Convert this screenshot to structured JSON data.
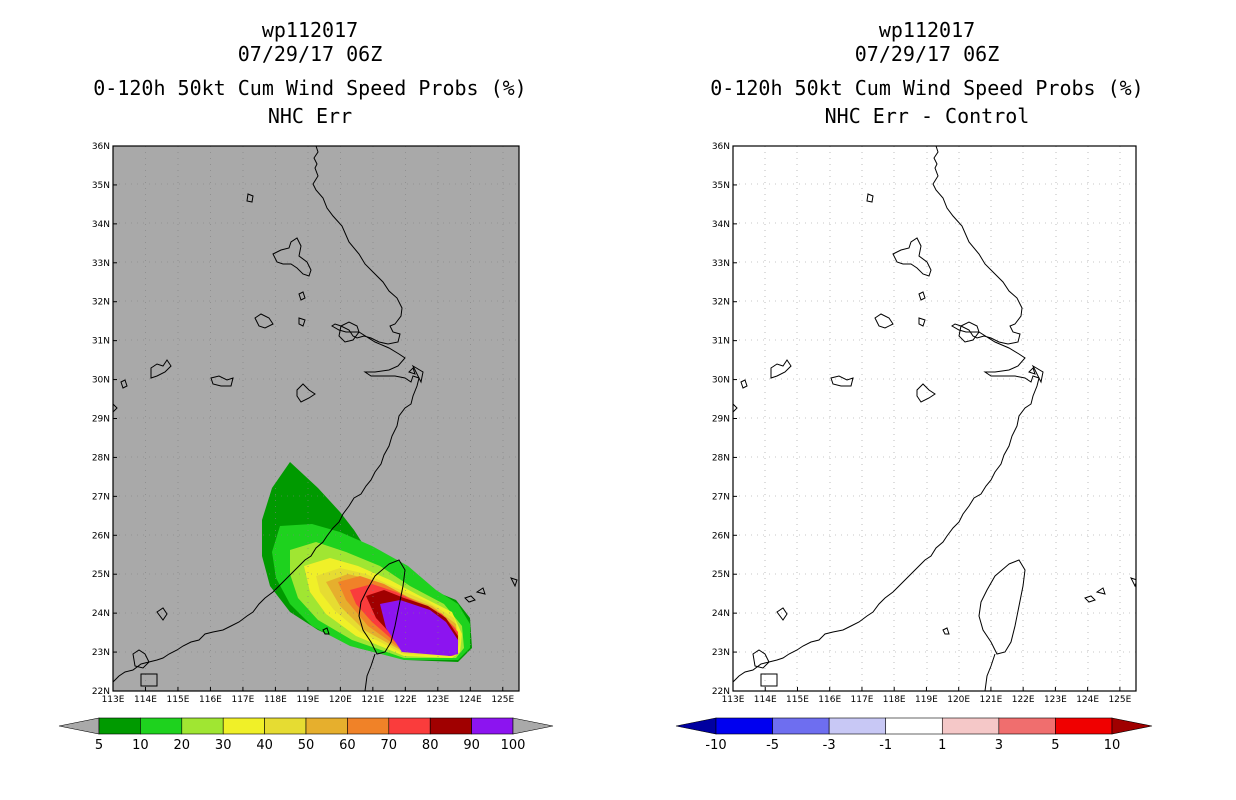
{
  "chart_data": [
    {
      "type": "contour_map",
      "title_lines": [
        "wp112017",
        "07/29/17 06Z",
        "0-120h 50kt Cum Wind Speed Probs (%)",
        "NHC Err"
      ],
      "xlabel": "",
      "ylabel": "",
      "x_ticks": [
        "113E",
        "114E",
        "115E",
        "116E",
        "117E",
        "118E",
        "119E",
        "120E",
        "121E",
        "122E",
        "123E",
        "124E",
        "125E"
      ],
      "y_ticks": [
        "22N",
        "23N",
        "24N",
        "25N",
        "26N",
        "27N",
        "28N",
        "29N",
        "30N",
        "31N",
        "32N",
        "33N",
        "34N",
        "35N",
        "36N"
      ],
      "xlim": [
        113,
        125.5
      ],
      "ylim": [
        22,
        36
      ],
      "background_color": "#a9a9a9",
      "grid": true,
      "colorbar": {
        "levels": [
          "5",
          "10",
          "20",
          "30",
          "40",
          "50",
          "60",
          "70",
          "80",
          "90",
          "100"
        ],
        "colors": [
          "#009a00",
          "#1ed21e",
          "#a0e632",
          "#f0f028",
          "#e6dc32",
          "#e6af2d",
          "#f08228",
          "#fa3c3c",
          "#a00000",
          "#8c14f0"
        ]
      }
    },
    {
      "type": "contour_map",
      "title_lines": [
        "wp112017",
        "07/29/17 06Z",
        "0-120h 50kt Cum Wind Speed Probs (%)",
        "NHC Err - Control"
      ],
      "xlabel": "",
      "ylabel": "",
      "x_ticks": [
        "113E",
        "114E",
        "115E",
        "116E",
        "117E",
        "118E",
        "119E",
        "120E",
        "121E",
        "122E",
        "123E",
        "124E",
        "125E"
      ],
      "y_ticks": [
        "22N",
        "23N",
        "24N",
        "25N",
        "26N",
        "27N",
        "28N",
        "29N",
        "30N",
        "31N",
        "32N",
        "33N",
        "34N",
        "35N",
        "36N"
      ],
      "xlim": [
        113,
        125.5
      ],
      "ylim": [
        22,
        36
      ],
      "background_color": "#ffffff",
      "grid": true,
      "colorbar": {
        "levels": [
          "-10",
          "-5",
          "-3",
          "-1",
          "1",
          "3",
          "5",
          "10"
        ],
        "colors": [
          "#0000a0",
          "#0000f0",
          "#6e6ef0",
          "#c8c8f5",
          "#ffffff",
          "#f5c8c8",
          "#f06e6e",
          "#f00000",
          "#a00000"
        ]
      }
    }
  ]
}
